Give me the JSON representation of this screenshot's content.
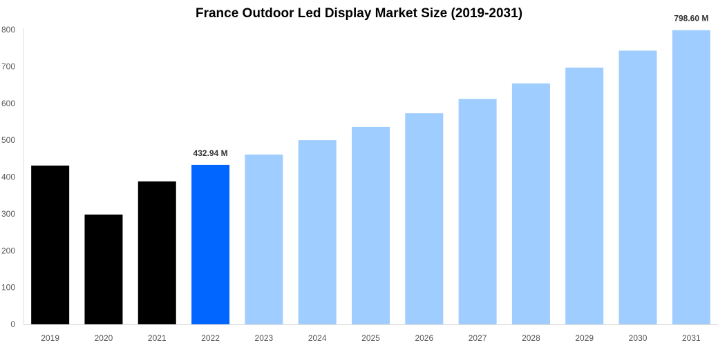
{
  "chart_data": {
    "type": "bar",
    "title": "France Outdoor Led Display Market Size (2019-2031)",
    "xlabel": "",
    "ylabel": "",
    "categories": [
      "2019",
      "2020",
      "2021",
      "2022",
      "2023",
      "2024",
      "2025",
      "2026",
      "2027",
      "2028",
      "2029",
      "2030",
      "2031"
    ],
    "values": [
      431,
      298,
      388,
      432.94,
      461,
      500,
      536,
      573,
      612,
      654,
      697,
      743,
      798.6
    ],
    "bar_colors": [
      "#000000",
      "#000000",
      "#000000",
      "#0066ff",
      "#a0cdff",
      "#a0cdff",
      "#a0cdff",
      "#a0cdff",
      "#a0cdff",
      "#a0cdff",
      "#a0cdff",
      "#a0cdff",
      "#a0cdff"
    ],
    "data_labels": {
      "3": "432.94 M",
      "12": "798.60 M"
    },
    "ylim": [
      0,
      800
    ],
    "yticks": [
      0,
      100,
      200,
      300,
      400,
      500,
      600,
      700,
      800
    ],
    "grid": false,
    "legend": "none"
  }
}
